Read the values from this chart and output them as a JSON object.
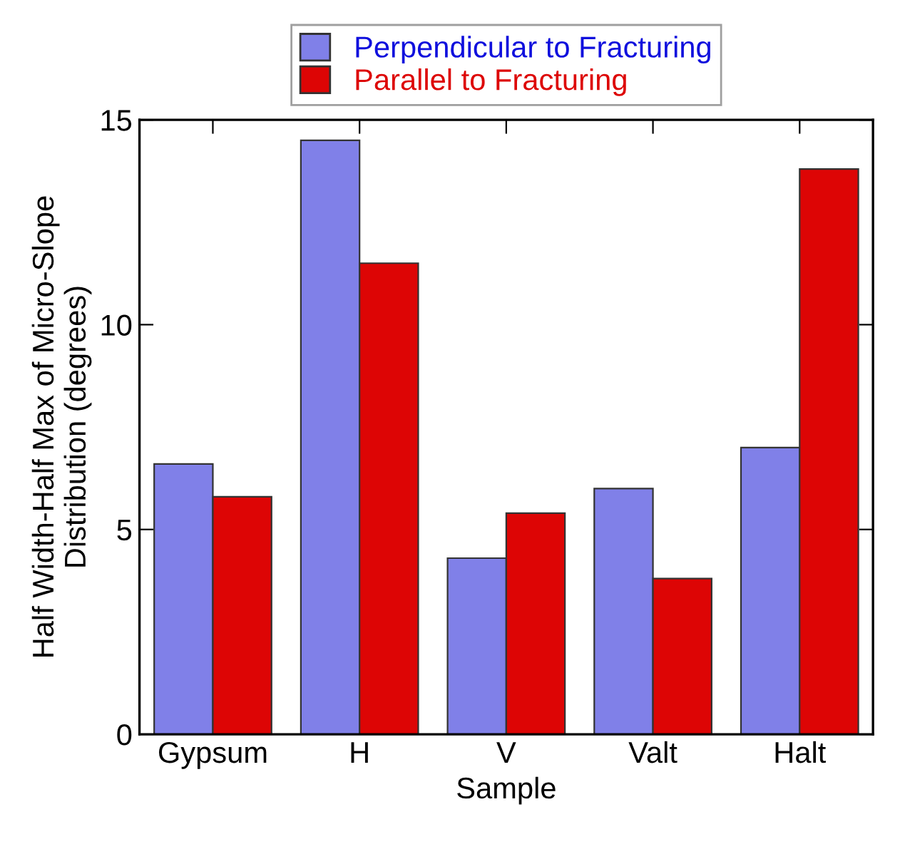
{
  "chart_data": {
    "type": "bar",
    "xlabel": "Sample",
    "ylabel": "Half Width-Half Max of Micro-Slope\nDistribution (degrees)",
    "categories": [
      "Gypsum",
      "H",
      "V",
      "Valt",
      "Halt"
    ],
    "series": [
      {
        "name": "Perpendicular to Fracturing",
        "color": "#8080e8",
        "values": [
          6.6,
          14.5,
          4.3,
          6.0,
          7.0
        ]
      },
      {
        "name": "Parallel to Fracturing",
        "color": "#dd0505",
        "values": [
          5.8,
          11.5,
          5.4,
          3.8,
          13.8
        ]
      }
    ],
    "ylim": [
      0,
      15
    ],
    "yticks": [
      0,
      5,
      10,
      15
    ],
    "grid": false,
    "legend": "top"
  }
}
